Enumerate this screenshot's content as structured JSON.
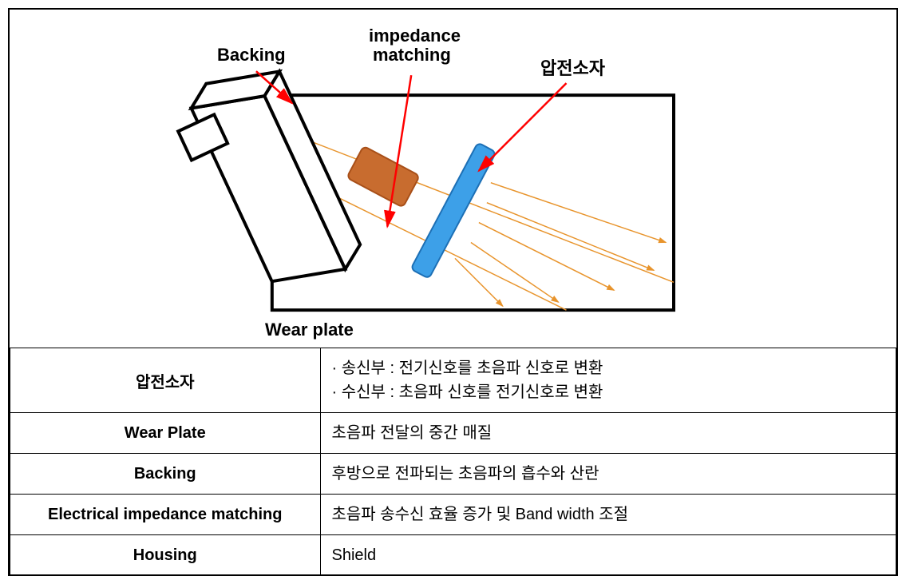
{
  "diagram": {
    "labels": {
      "backing": "Backing",
      "impedance_matching_line1": "impedance",
      "impedance_matching_line2": "matching",
      "piezo": "압전소자",
      "wear_plate": "Wear plate"
    },
    "colors": {
      "outline": "#000000",
      "housing_fill": "#ffffff",
      "impedance_block_fill": "#c86c2f",
      "impedance_block_stroke": "#a84f18",
      "piezo_fill": "#3da0e8",
      "piezo_stroke": "#1c6fb5",
      "arrow_red": "#ff0000",
      "wave_orange": "#e8942c",
      "label_text": "#000000"
    },
    "font_sizes": {
      "label": 22
    },
    "housing_outline_width": 4,
    "arrow_width": 2,
    "wave_width": 1.5
  },
  "table": {
    "rows": [
      {
        "label": "압전소자",
        "desc_lines": [
          "· 송신부 : 전기신호를 초음파 신호로 변환",
          "· 수신부 : 초음파 신호를 전기신호로 변환"
        ]
      },
      {
        "label": "Wear Plate",
        "desc_lines": [
          "초음파 전달의 중간 매질"
        ]
      },
      {
        "label": "Backing",
        "desc_lines": [
          "후방으로 전파되는 초음파의 흡수와 산란"
        ]
      },
      {
        "label": "Electrical impedance matching",
        "desc_lines": [
          "초음파 송수신 효율 증가 및 Band width 조절"
        ]
      },
      {
        "label": "Housing",
        "desc_lines": [
          "Shield"
        ]
      }
    ]
  }
}
